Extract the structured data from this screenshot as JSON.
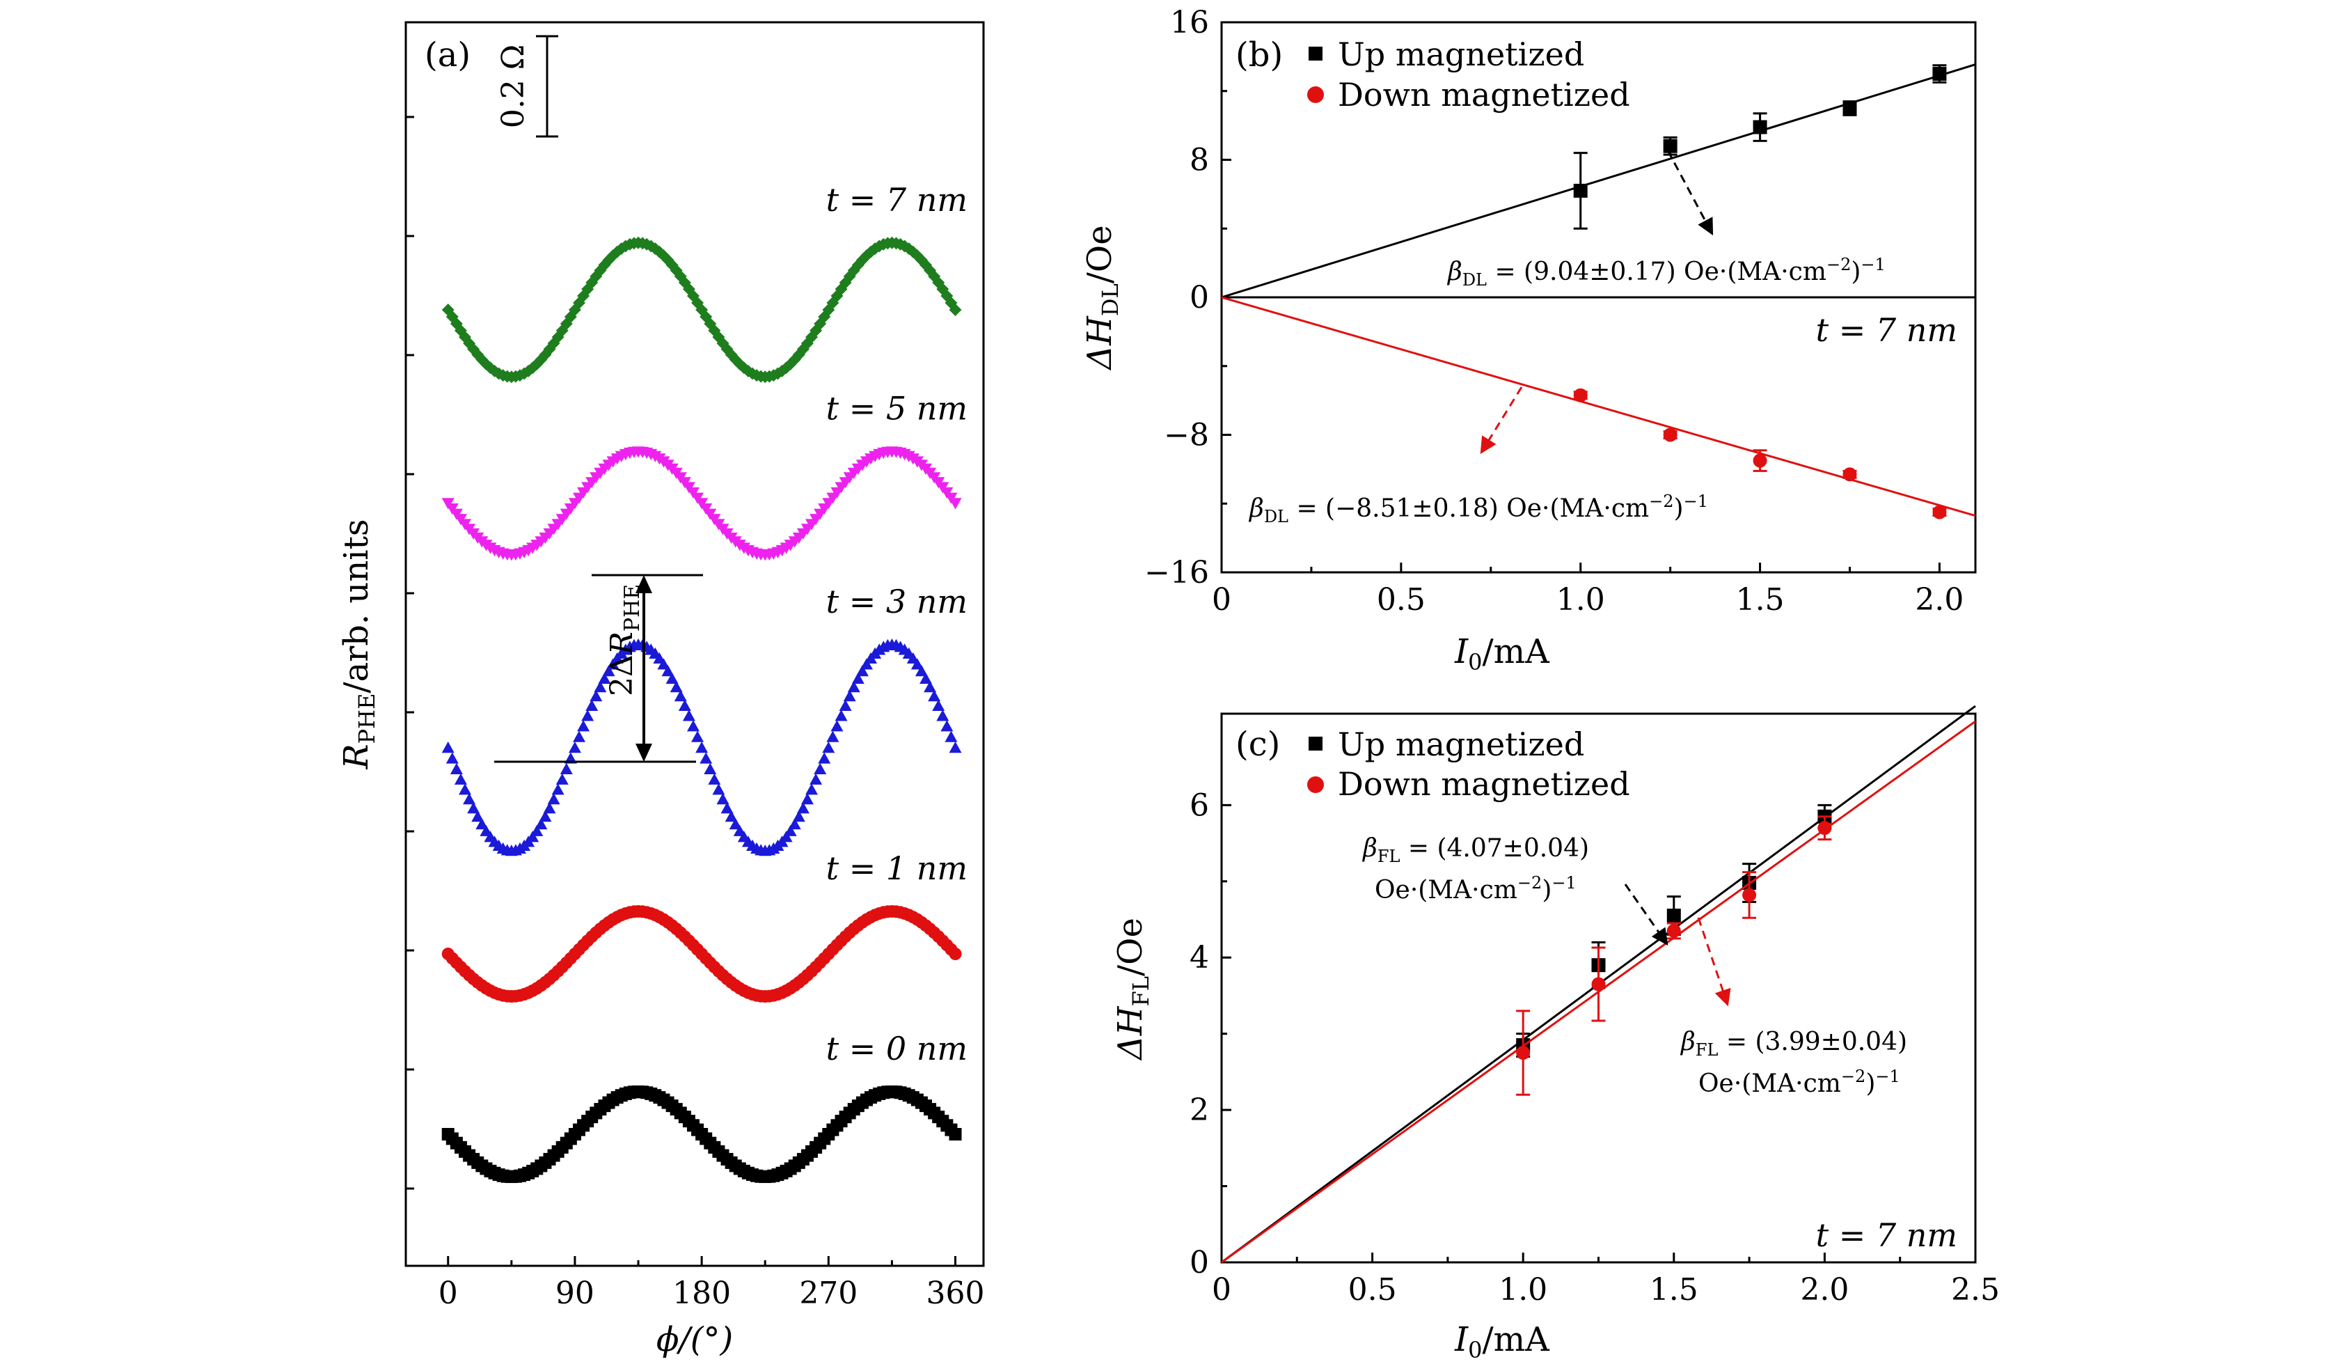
{
  "chart_data": [
    {
      "panel": "(a)",
      "type": "scatter",
      "xlabel": "ϕ/(°)",
      "ylabel_main": "R",
      "ylabel_sub": "PHE",
      "ylabel_rest": "/arb. units",
      "xlim": [
        -30,
        380
      ],
      "xticks": [
        0,
        90,
        180,
        270,
        360
      ],
      "scale_bar": "0.2 Ω",
      "annotation": {
        "prefix": "2Δ",
        "main": "R",
        "sub": "PHE"
      },
      "series": [
        {
          "name": "t = 7 nm",
          "color": "#1e7e1e",
          "marker": "diamond",
          "offset": 7.0,
          "amplitude": 0.52,
          "phase": 135,
          "x_range": [
            0,
            360
          ]
        },
        {
          "name": "t = 5 nm",
          "color": "#ee22ee",
          "marker": "triangle-down",
          "offset": 5.5,
          "amplitude": 0.4,
          "phase": 135,
          "x_range": [
            0,
            360
          ]
        },
        {
          "name": "t = 3 nm",
          "color": "#1a1ad8",
          "marker": "triangle-up",
          "offset": 3.6,
          "amplitude": 0.8,
          "phase": 135,
          "x_range": [
            0,
            360
          ]
        },
        {
          "name": "t = 1 nm",
          "color": "#e01010",
          "marker": "circle",
          "offset": 2.0,
          "amplitude": 0.33,
          "phase": 135,
          "x_range": [
            0,
            360
          ]
        },
        {
          "name": "t = 0 nm",
          "color": "#000000",
          "marker": "square",
          "offset": 0.6,
          "amplitude": 0.33,
          "phase": 135,
          "x_range": [
            0,
            360
          ]
        }
      ]
    },
    {
      "panel": "(b)",
      "type": "scatter",
      "xlabel_main": "I",
      "xlabel_sub": "0",
      "xlabel_rest": "/mA",
      "ylabel_main": "ΔH",
      "ylabel_sub": "DL",
      "ylabel_rest": "/Oe",
      "xlim": [
        0,
        2.1
      ],
      "ylim": [
        -16,
        16
      ],
      "xticks": [
        0,
        0.5,
        1.0,
        1.5,
        2.0
      ],
      "xtick_labels": [
        "0",
        "0.5",
        "1.0",
        "1.5",
        "2.0"
      ],
      "yticks": [
        -16,
        -8,
        0,
        8,
        16
      ],
      "ytick_labels": [
        "−16",
        "−8",
        "0",
        "8",
        "16"
      ],
      "label_t": "t = 7 nm",
      "series": [
        {
          "name": "Up magnetized",
          "color": "#000000",
          "marker": "square",
          "x": [
            1.0,
            1.25,
            1.5,
            1.75,
            2.0
          ],
          "y": [
            6.2,
            8.8,
            9.9,
            11.0,
            13.0
          ],
          "err": [
            2.2,
            0.5,
            0.8,
            0.4,
            0.5
          ],
          "fit_slope": 6.45,
          "fit_x": [
            0,
            2.1
          ]
        },
        {
          "name": "Down magnetized",
          "color": "#e01010",
          "marker": "circle",
          "x": [
            1.0,
            1.25,
            1.5,
            1.75,
            2.0
          ],
          "y": [
            -5.7,
            -8.0,
            -9.5,
            -10.3,
            -12.5
          ],
          "err": [
            0.2,
            0.2,
            0.6,
            0.2,
            0.2
          ],
          "fit_slope": -6.05,
          "fit_x": [
            0,
            2.1
          ]
        }
      ],
      "annotations": [
        {
          "main": "β",
          "sub": "DL",
          "text": " = (9.04±0.17) Oe·(MA·cm",
          "sup": "−2",
          "tail": ")",
          "sup2": "−1"
        },
        {
          "main": "β",
          "sub": "DL",
          "text": " = (−8.51±0.18) Oe·(MA·cm",
          "sup": "−2",
          "tail": ")",
          "sup2": "−1"
        }
      ]
    },
    {
      "panel": "(c)",
      "type": "scatter",
      "xlabel_main": "I",
      "xlabel_sub": "0",
      "xlabel_rest": "/mA",
      "ylabel_main": "ΔH",
      "ylabel_sub": "FL",
      "ylabel_rest": "/Oe",
      "xlim": [
        0,
        2.5
      ],
      "ylim": [
        0,
        7.2
      ],
      "xticks": [
        0,
        0.5,
        1.0,
        1.5,
        2.0,
        2.5
      ],
      "xtick_labels": [
        "0",
        "0.5",
        "1.0",
        "1.5",
        "2.0",
        "2.5"
      ],
      "yticks": [
        0,
        2,
        4,
        6
      ],
      "ytick_labels": [
        "0",
        "2",
        "4",
        "6"
      ],
      "label_t": "t = 7 nm",
      "series": [
        {
          "name": "Up magnetized",
          "color": "#000000",
          "marker": "square",
          "x": [
            1.0,
            1.25,
            1.5,
            1.75,
            2.0
          ],
          "y": [
            2.85,
            3.9,
            4.55,
            4.98,
            5.85
          ],
          "err": [
            0.15,
            0.3,
            0.25,
            0.25,
            0.15
          ],
          "fit_slope": 2.92,
          "fit_x": [
            0,
            2.5
          ]
        },
        {
          "name": "Down magnetized",
          "color": "#e01010",
          "marker": "circle",
          "x": [
            1.0,
            1.25,
            1.5,
            1.75,
            2.0
          ],
          "y": [
            2.75,
            3.65,
            4.35,
            4.82,
            5.7
          ],
          "err": [
            0.55,
            0.48,
            0.1,
            0.3,
            0.15
          ],
          "fit_slope": 2.84,
          "fit_x": [
            0,
            2.5
          ]
        }
      ],
      "annotations": [
        {
          "line1_main": "β",
          "line1_sub": "FL",
          "line1_text": " = (4.07±0.04)",
          "line2_text": "Oe·(MA·cm",
          "sup": "−2",
          "tail": ")",
          "sup2": "−1"
        },
        {
          "line1_main": "β",
          "line1_sub": "FL",
          "line1_text": " = (3.99±0.04)",
          "line2_text": "Oe·(MA·cm",
          "sup": "−2",
          "tail": ")",
          "sup2": "−1"
        }
      ]
    }
  ]
}
